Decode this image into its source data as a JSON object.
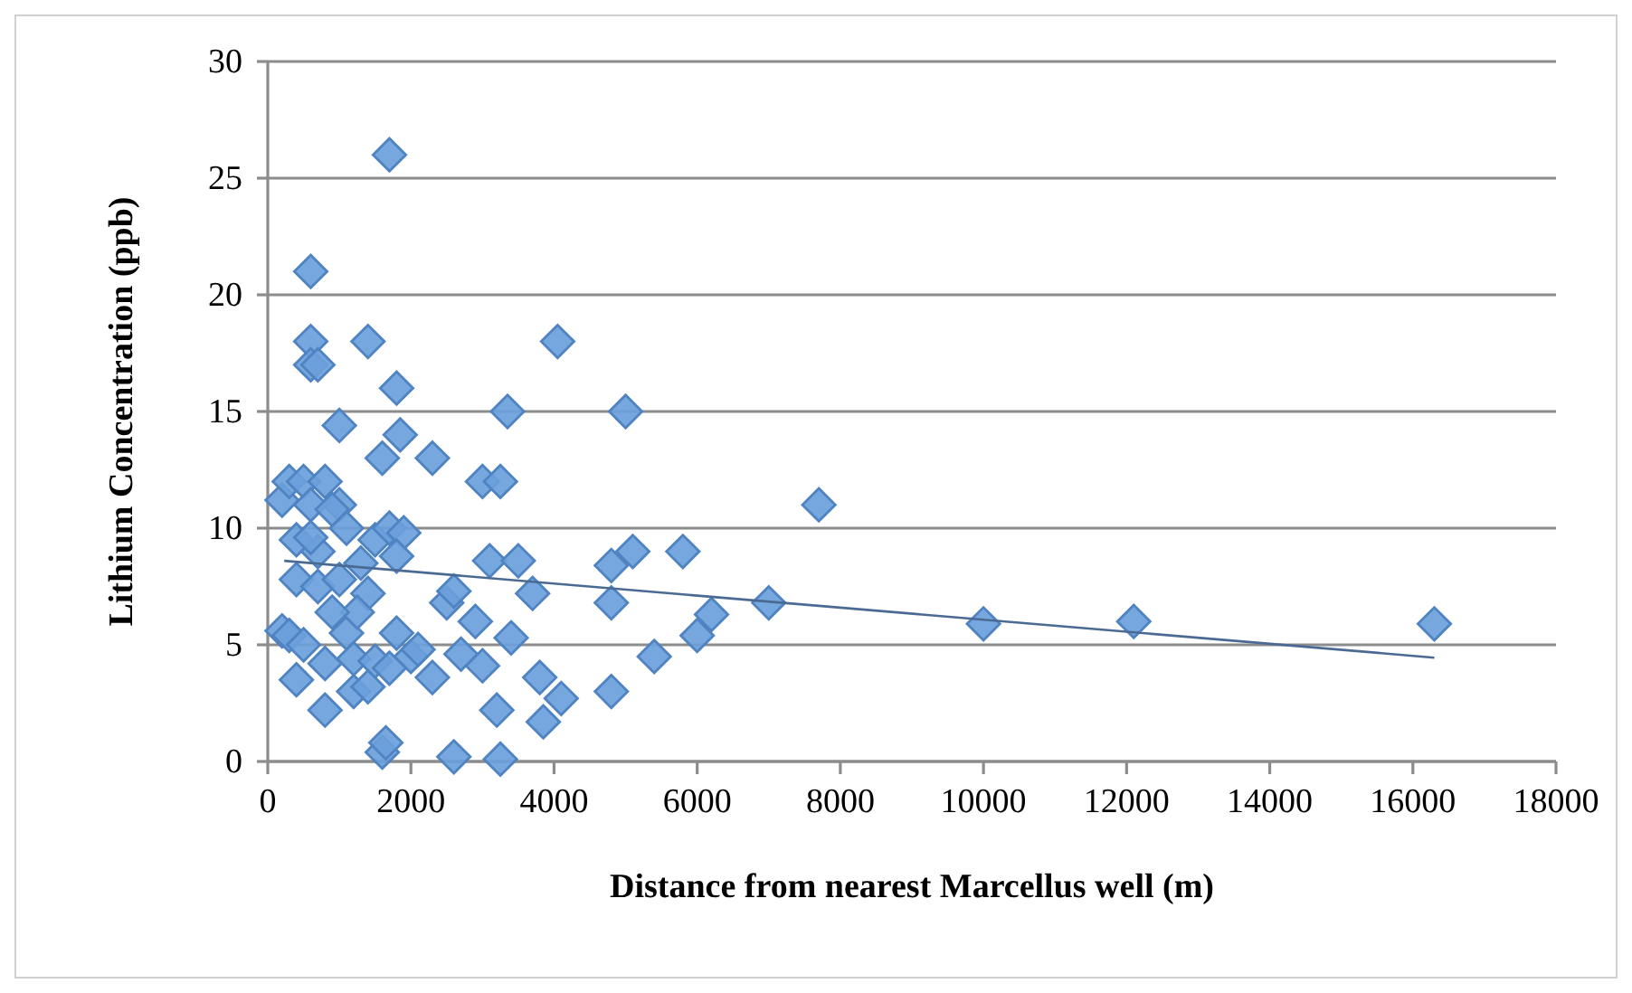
{
  "chart_data": {
    "type": "scatter",
    "xlabel": "Distance from nearest Marcellus well (m)",
    "ylabel": "Lithium Concentration (ppb)",
    "xlim": [
      0,
      18000
    ],
    "xticks": [
      0,
      2000,
      4000,
      6000,
      8000,
      10000,
      12000,
      14000,
      16000,
      18000
    ],
    "ylim": [
      0,
      30
    ],
    "yticks": [
      0,
      5,
      10,
      15,
      20,
      25,
      30
    ],
    "grid": "y",
    "marker": "diamond",
    "series": [
      {
        "color": "#6a9fdc",
        "x": [
          1700,
          600,
          600,
          1400,
          4050,
          600,
          700,
          1800,
          3350,
          5000,
          1000,
          1850,
          1600,
          2300,
          200,
          300,
          500,
          800,
          1000,
          3000,
          3250,
          600,
          7700,
          400,
          700,
          1100,
          1500,
          1700,
          1900,
          3100,
          3500,
          4800,
          5100,
          5800,
          1300,
          1800,
          400,
          700,
          1000,
          1400,
          2500,
          2600,
          2900,
          3700,
          4800,
          7000,
          6200,
          10000,
          12100,
          16300,
          200,
          300,
          500,
          800,
          1100,
          1200,
          1500,
          1800,
          2000,
          2300,
          2100,
          2700,
          3400,
          6000,
          5400,
          400,
          800,
          1200,
          1400,
          1600,
          1650,
          2600,
          3250,
          3200,
          3800,
          3850,
          4100,
          4800,
          3000,
          1700,
          600,
          900,
          1250,
          900
        ],
        "values": [
          26,
          21,
          18,
          18,
          18,
          17,
          17,
          16,
          15,
          15,
          14.4,
          14,
          13,
          13,
          11.2,
          12,
          12,
          12,
          11,
          12,
          12,
          11,
          11,
          9.5,
          9,
          10,
          9.5,
          10,
          9.8,
          8.6,
          8.6,
          8.4,
          9,
          9,
          8.5,
          8.8,
          7.8,
          7.5,
          7.8,
          7.2,
          6.8,
          7.3,
          6,
          7.2,
          6.8,
          6.8,
          6.3,
          5.9,
          6,
          5.9,
          5.6,
          5.4,
          5,
          4.2,
          5.5,
          4.4,
          4.3,
          5.5,
          4.5,
          3.6,
          4.8,
          4.6,
          5.3,
          5.4,
          4.5,
          3.5,
          2.2,
          3,
          3.2,
          0.4,
          0.8,
          0.2,
          0.1,
          2.2,
          3.6,
          1.7,
          2.7,
          3,
          4.1,
          4,
          9.6,
          10.8,
          6.4,
          6.4
        ]
      },
      {
        "type": "line",
        "color": "#4a6a94",
        "line_style": "solid",
        "marker": "none",
        "x": [
          230,
          16300
        ],
        "values": [
          8.6,
          4.45
        ]
      }
    ]
  }
}
